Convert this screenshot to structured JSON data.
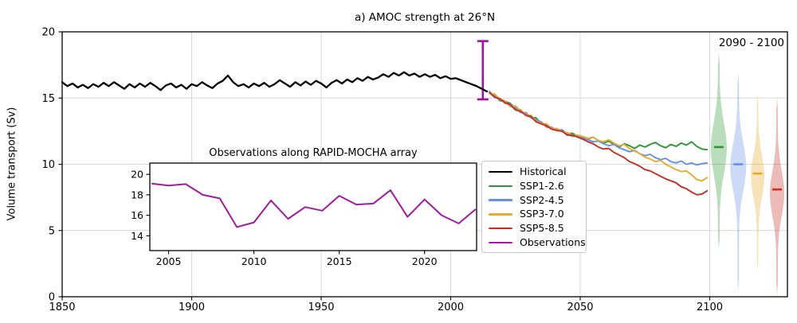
{
  "legend": {
    "items": [
      {
        "label": "Historical",
        "color": "#000000"
      },
      {
        "label": "SSP1-2.6",
        "color": "#2E9735"
      },
      {
        "label": "SSP2-4.5",
        "color": "#6490EA"
      },
      {
        "label": "SSP3-7.0",
        "color": "#E8A92F"
      },
      {
        "label": "SSP5-8.5",
        "color": "#C62F25"
      },
      {
        "label": "Observations",
        "color": "#A01BA0"
      }
    ]
  },
  "chart_data": [
    {
      "type": "line",
      "title": "a) AMOC strength at 26°N",
      "xlabel": "",
      "ylabel": "Volume transport (Sv)",
      "period_label": "2090 - 2100",
      "xlim": [
        1850,
        2130
      ],
      "ylim": [
        0,
        20
      ],
      "xticks": [
        1850,
        1900,
        1950,
        2000,
        2050,
        2100
      ],
      "yticks": [
        0,
        5,
        10,
        15,
        20
      ],
      "grid": true,
      "grid_color": "#d8d8d8",
      "series": [
        {
          "name": "Historical",
          "color": "#000000",
          "width": 2.3,
          "x_start": 1850,
          "x_step": 2,
          "values": [
            16.2,
            15.9,
            16.1,
            15.8,
            16.0,
            15.75,
            16.05,
            15.85,
            16.15,
            15.9,
            16.2,
            15.95,
            15.7,
            16.05,
            15.8,
            16.1,
            15.85,
            16.15,
            15.9,
            15.6,
            15.95,
            16.1,
            15.8,
            16.0,
            15.7,
            16.05,
            15.9,
            16.2,
            15.95,
            15.75,
            16.1,
            16.3,
            16.7,
            16.2,
            15.9,
            16.05,
            15.8,
            16.1,
            15.9,
            16.15,
            15.85,
            16.05,
            16.35,
            16.1,
            15.85,
            16.2,
            15.95,
            16.25,
            16.0,
            16.3,
            16.1,
            15.8,
            16.15,
            16.35,
            16.1,
            16.4,
            16.2,
            16.5,
            16.3,
            16.6,
            16.4,
            16.55,
            16.8,
            16.6,
            16.9,
            16.7,
            16.95,
            16.7,
            16.85,
            16.6,
            16.8,
            16.6,
            16.75,
            16.5,
            16.65,
            16.45,
            16.5,
            16.35,
            16.2,
            16.05,
            15.9,
            15.7,
            15.5
          ]
        },
        {
          "name": "SSP1-2.6",
          "color": "#2E9735",
          "width": 1.9,
          "x_start": 2015,
          "x_step": 2,
          "values": [
            15.4,
            15.25,
            14.8,
            14.75,
            14.6,
            14.2,
            14.1,
            13.7,
            13.55,
            13.5,
            13.05,
            13.0,
            12.65,
            12.65,
            12.55,
            12.25,
            12.35,
            12.1,
            12.0,
            11.9,
            12.05,
            11.8,
            11.6,
            11.75,
            11.5,
            11.3,
            11.55,
            11.4,
            11.2,
            11.45,
            11.3,
            11.5,
            11.65,
            11.4,
            11.25,
            11.5,
            11.35,
            11.6,
            11.45,
            11.7,
            11.35,
            11.15,
            11.1
          ]
        },
        {
          "name": "SSP2-4.5",
          "color": "#6490EA",
          "width": 1.9,
          "x_start": 2015,
          "x_step": 2,
          "values": [
            15.5,
            15.1,
            14.95,
            14.6,
            14.55,
            14.3,
            13.9,
            13.9,
            13.5,
            13.35,
            13.2,
            12.8,
            12.8,
            12.55,
            12.6,
            12.3,
            12.1,
            12.15,
            12.0,
            11.85,
            11.7,
            11.75,
            11.55,
            11.4,
            11.5,
            11.25,
            11.1,
            10.95,
            11.05,
            10.8,
            10.65,
            10.75,
            10.5,
            10.35,
            10.45,
            10.2,
            10.1,
            10.25,
            10.0,
            10.1,
            9.95,
            10.05,
            10.1
          ]
        },
        {
          "name": "SSP3-7.0",
          "color": "#E8A92F",
          "width": 1.9,
          "x_start": 2015,
          "x_step": 2,
          "values": [
            15.35,
            15.3,
            14.9,
            14.8,
            14.35,
            14.4,
            14.05,
            13.75,
            13.7,
            13.25,
            13.1,
            13.05,
            12.7,
            12.7,
            12.45,
            12.4,
            12.15,
            12.2,
            12.1,
            11.95,
            12.05,
            11.8,
            11.7,
            11.85,
            11.6,
            11.4,
            11.5,
            11.2,
            11.0,
            10.8,
            10.55,
            10.4,
            10.2,
            10.3,
            10.0,
            9.8,
            9.6,
            9.45,
            9.5,
            9.2,
            8.85,
            8.75,
            9.0
          ]
        },
        {
          "name": "SSP5-8.5",
          "color": "#C62F25",
          "width": 1.9,
          "x_start": 2015,
          "x_step": 2,
          "values": [
            15.4,
            15.05,
            14.95,
            14.65,
            14.5,
            14.1,
            14.0,
            13.7,
            13.6,
            13.2,
            13.05,
            12.9,
            12.65,
            12.55,
            12.5,
            12.2,
            12.2,
            12.05,
            11.9,
            11.7,
            11.55,
            11.3,
            11.15,
            11.2,
            10.9,
            10.7,
            10.5,
            10.2,
            10.05,
            9.85,
            9.6,
            9.5,
            9.3,
            9.1,
            8.9,
            8.75,
            8.6,
            8.3,
            8.15,
            7.9,
            7.7,
            7.75,
            8.0
          ]
        }
      ],
      "errorbar": {
        "name": "Observations",
        "x": 2012.4,
        "low": 14.9,
        "high": 19.3,
        "color": "#9C159C"
      },
      "violins": [
        {
          "name": "SSP1-2.6",
          "color": "#2E9735",
          "center_year": 2103.5,
          "top": 18.4,
          "bottom": 3.6,
          "mean": 11.3,
          "mode": 11.2,
          "sigma": 2.7,
          "half_width": 10
        },
        {
          "name": "SSP2-4.5",
          "color": "#6490EA",
          "center_year": 2111.0,
          "top": 16.9,
          "bottom": 0.4,
          "mean": 10.0,
          "mode": 9.8,
          "sigma": 2.5,
          "half_width": 10
        },
        {
          "name": "SSP3-7.0",
          "color": "#E8A92F",
          "center_year": 2118.5,
          "top": 15.3,
          "bottom": 2.0,
          "mean": 9.3,
          "mode": 9.1,
          "sigma": 2.2,
          "half_width": 8.5
        },
        {
          "name": "SSP5-8.5",
          "color": "#C62F25",
          "center_year": 2126.0,
          "top": 15.0,
          "bottom": 0.1,
          "mean": 8.1,
          "mode": 7.8,
          "sigma": 2.4,
          "half_width": 9
        }
      ]
    },
    {
      "type": "line",
      "title": "Observations along RAPID-MOCHA array",
      "xlabel": "",
      "ylabel": "",
      "xlim": [
        2003.9,
        2023.05
      ],
      "ylim": [
        12.55,
        21.1
      ],
      "xticks": [
        2005,
        2010,
        2015,
        2020
      ],
      "yticks": [
        14,
        16,
        18,
        20
      ],
      "grid": false,
      "series": [
        {
          "name": "Observations",
          "color": "#A01BA0",
          "width": 2.0,
          "x_start": 2004,
          "x_step": 1,
          "values": [
            19.1,
            18.9,
            19.05,
            18.0,
            17.65,
            14.85,
            15.3,
            17.45,
            15.65,
            16.8,
            16.45,
            17.9,
            17.05,
            17.15,
            18.45,
            15.85,
            17.55,
            16.0,
            15.2,
            16.6
          ]
        }
      ]
    }
  ]
}
